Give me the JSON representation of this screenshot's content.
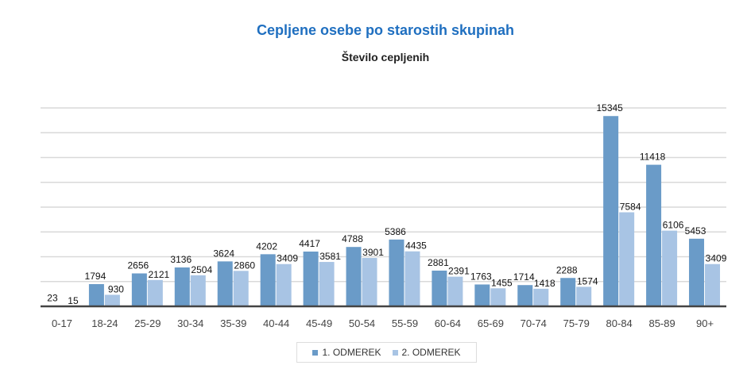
{
  "chart_data": {
    "type": "bar",
    "title": "Cepljene osebe po starostih skupinah",
    "subtitle": "Število cepljenih",
    "categories": [
      "0-17",
      "18-24",
      "25-29",
      "30-34",
      "35-39",
      "40-44",
      "45-49",
      "50-54",
      "55-59",
      "60-64",
      "65-69",
      "70-74",
      "75-79",
      "80-84",
      "85-89",
      "90+"
    ],
    "series": [
      {
        "name": "1. ODMEREK",
        "color": "#6a9bc8",
        "values": [
          23,
          1794,
          2656,
          3136,
          3624,
          4202,
          4417,
          4788,
          5386,
          2881,
          1763,
          1714,
          2288,
          15345,
          11418,
          5453
        ]
      },
      {
        "name": "2. ODMEREK",
        "color": "#a8c4e4",
        "values": [
          15,
          930,
          2121,
          2504,
          2860,
          3409,
          3581,
          3901,
          4435,
          2391,
          1455,
          1418,
          1574,
          7584,
          6106,
          3409
        ]
      }
    ],
    "ylim": [
      0,
      16000
    ],
    "grid_step": 2000,
    "grid": true,
    "legend_placement": "bottom",
    "title_color": "#1f6fc0"
  }
}
